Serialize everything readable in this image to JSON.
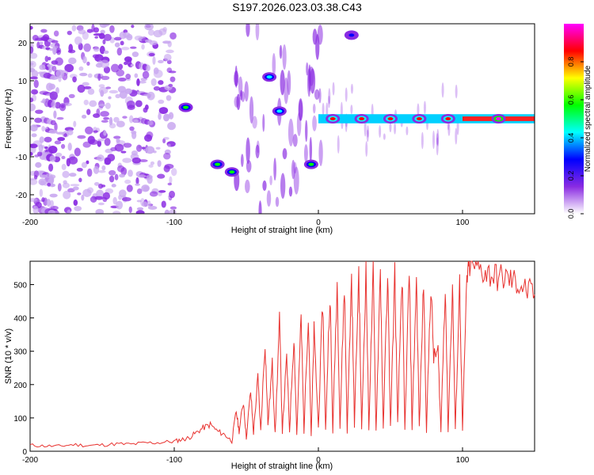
{
  "figure": {
    "title": "S197.2026.023.03.38.C43"
  },
  "chart_data": [
    {
      "type": "heatmap",
      "xlabel": "Height of straight line (km)",
      "ylabel": "Frequency (Hz)",
      "xlim": [
        -200,
        150
      ],
      "ylim": [
        -25,
        25
      ],
      "xticks": [
        -200,
        -100,
        0,
        100
      ],
      "yticks": [
        -20,
        -10,
        0,
        10,
        20
      ],
      "colorbar": {
        "label": "Normalized spectral amplitude",
        "range": [
          0,
          1
        ],
        "ticks": [
          "0.0",
          "0.2",
          "0.4",
          "0.6",
          "0.8"
        ],
        "colors": [
          "#ffffff",
          "#8a2be2",
          "#0000ff",
          "#00ffff",
          "#00ff00",
          "#ffff00",
          "#ff0000",
          "#ff00ff"
        ]
      },
      "blobs": [
        {
          "x": -92,
          "f": 3,
          "amp": 0.6
        },
        {
          "x": -70,
          "f": -12,
          "amp": 0.55
        },
        {
          "x": -60,
          "f": -14,
          "amp": 0.5
        },
        {
          "x": -34,
          "f": 11,
          "amp": 0.4
        },
        {
          "x": -27,
          "f": 2,
          "amp": 0.45
        },
        {
          "x": -5,
          "f": -12,
          "amp": 0.6
        },
        {
          "x": 23,
          "f": 22,
          "amp": 0.35
        },
        {
          "x": 10,
          "f": 0,
          "amp": 0.9
        },
        {
          "x": 30,
          "f": 0,
          "amp": 0.9
        },
        {
          "x": 50,
          "f": 0,
          "amp": 0.9
        },
        {
          "x": 70,
          "f": 0,
          "amp": 0.9
        },
        {
          "x": 90,
          "f": 0,
          "amp": 0.9
        },
        {
          "x": 125,
          "f": 0,
          "amp": 1.0
        }
      ]
    },
    {
      "type": "line",
      "xlabel": "Height of straight line (km)",
      "ylabel": "SNR (10 * v/v)",
      "xlim": [
        -200,
        150
      ],
      "ylim": [
        0,
        570
      ],
      "xticks": [
        -200,
        -100,
        0,
        100
      ],
      "yticks": [
        0,
        100,
        200,
        300,
        400,
        500
      ],
      "color": "#e8322f",
      "series": [
        {
          "name": "SNR",
          "x": [
            -200,
            -190,
            -180,
            -170,
            -160,
            -150,
            -140,
            -130,
            -120,
            -110,
            -100,
            -95,
            -90,
            -85,
            -80,
            -75,
            -70,
            -65,
            -60,
            -57,
            -55,
            -52,
            -50,
            -47,
            -45,
            -42,
            -40,
            -37,
            -35,
            -32,
            -30,
            -27,
            -25,
            -22,
            -20,
            -17,
            -15,
            -12,
            -10,
            -7,
            -5,
            -3,
            0,
            3,
            5,
            8,
            10,
            13,
            15,
            18,
            20,
            23,
            25,
            28,
            30,
            33,
            35,
            38,
            40,
            43,
            45,
            48,
            50,
            53,
            55,
            58,
            60,
            63,
            65,
            68,
            70,
            73,
            75,
            78,
            80,
            83,
            85,
            88,
            90,
            93,
            95,
            98,
            100,
            103,
            105,
            110,
            115,
            120,
            125,
            130,
            135,
            140,
            145,
            150
          ],
          "y": [
            18,
            16,
            15,
            20,
            17,
            19,
            22,
            21,
            25,
            26,
            30,
            35,
            40,
            55,
            70,
            80,
            60,
            50,
            30,
            120,
            60,
            150,
            40,
            180,
            55,
            220,
            60,
            330,
            80,
            260,
            50,
            390,
            60,
            280,
            60,
            350,
            50,
            400,
            60,
            420,
            40,
            360,
            70,
            450,
            60,
            480,
            60,
            510,
            70,
            500,
            60,
            520,
            80,
            540,
            60,
            550,
            70,
            530,
            60,
            545,
            60,
            540,
            70,
            530,
            80,
            535,
            60,
            540,
            70,
            520,
            70,
            510,
            60,
            500,
            280,
            300,
            60,
            510,
            60,
            500,
            60,
            505,
            60,
            520,
            560,
            550,
            540,
            530,
            520,
            520,
            510,
            500,
            480,
            470
          ]
        }
      ]
    }
  ]
}
